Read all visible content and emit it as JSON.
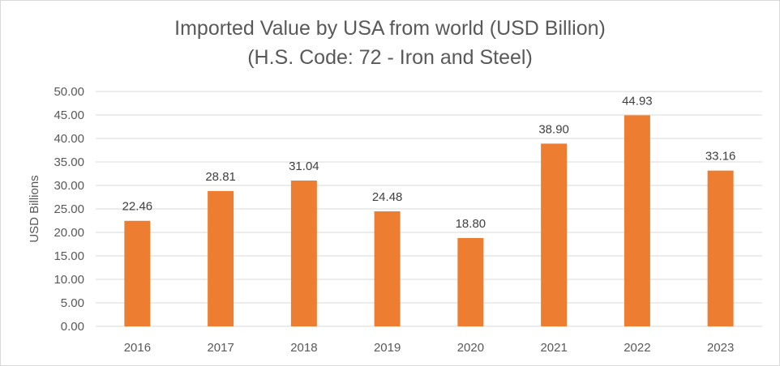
{
  "chart_data": {
    "type": "bar",
    "title_line1": "Imported Value by USA from world (USD Billion)",
    "title_line2": "(H.S. Code: 72 - Iron and Steel)",
    "xlabel": "",
    "ylabel": "USD Billions",
    "categories": [
      "2016",
      "2017",
      "2018",
      "2019",
      "2020",
      "2021",
      "2022",
      "2023"
    ],
    "values": [
      22.46,
      28.81,
      31.04,
      24.48,
      18.8,
      38.9,
      44.93,
      33.16
    ],
    "value_labels": [
      "22.46",
      "28.81",
      "31.04",
      "24.48",
      "18.80",
      "38.90",
      "44.93",
      "33.16"
    ],
    "ylim": [
      0,
      50
    ],
    "yticks": [
      "0.00",
      "5.00",
      "10.00",
      "15.00",
      "20.00",
      "25.00",
      "30.00",
      "35.00",
      "40.00",
      "45.00",
      "50.00"
    ],
    "grid": true,
    "legend": "none",
    "bar_color": "#ED7D31",
    "grid_color": "#d9d9d9"
  }
}
